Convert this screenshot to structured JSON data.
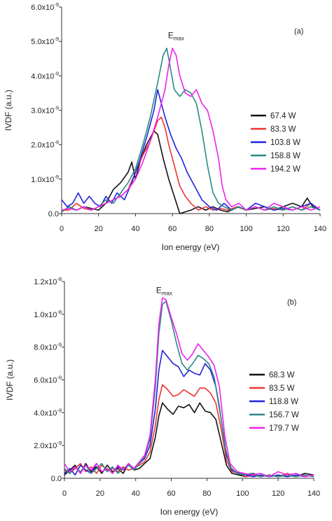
{
  "chart_data": [
    {
      "type": "line",
      "panel_label": "(a)",
      "xlabel": "Ion energy (eV)",
      "ylabel": "IVDF (a.u.)",
      "xlim": [
        0,
        140
      ],
      "ylim": [
        0,
        6e-09
      ],
      "x_ticks": [
        0,
        20,
        40,
        60,
        80,
        100,
        120,
        140
      ],
      "x_tick_labels": [
        "0",
        "20",
        "40",
        "60",
        "80",
        "100",
        "120",
        "140"
      ],
      "y_ticks": [
        0,
        1e-09,
        2e-09,
        3e-09,
        4e-09,
        5e-09,
        6e-09
      ],
      "y_tick_labels": [
        {
          "base": "0.0",
          "exp": ""
        },
        {
          "base": "1.0x10",
          "exp": "-9"
        },
        {
          "base": "2.0x10",
          "exp": "-9"
        },
        {
          "base": "3.0x10",
          "exp": "-9"
        },
        {
          "base": "4.0x10",
          "exp": "-9"
        },
        {
          "base": "5.0x10",
          "exp": "-9"
        },
        {
          "base": "6.0x10",
          "exp": "-9"
        }
      ],
      "annotation": {
        "text": "E",
        "sub": "max",
        "x": 62,
        "y": 5.1e-09
      },
      "grid": false,
      "legend_position": "right",
      "series": [
        {
          "name": "67.4 W",
          "color": "#111111",
          "x": [
            0,
            4,
            8,
            12,
            16,
            20,
            24,
            28,
            32,
            36,
            38,
            40,
            43,
            46,
            50,
            52,
            55,
            58,
            61,
            64,
            67,
            70,
            74,
            78,
            82,
            86,
            90,
            95,
            100,
            105,
            110,
            115,
            120,
            125,
            130,
            133,
            136,
            140
          ],
          "y": [
            5e-11,
            2e-10,
            1e-10,
            2e-10,
            1.5e-10,
            1e-10,
            3e-10,
            7e-10,
            9e-10,
            1.2e-09,
            1.5e-09,
            1e-09,
            1.6e-09,
            2e-09,
            2.4e-09,
            2.3e-09,
            1.6e-09,
            1e-09,
            5e-10,
            0.0,
            5e-11,
            1e-10,
            2e-10,
            1e-10,
            2e-10,
            1e-10,
            5e-11,
            2e-10,
            1e-10,
            1.5e-10,
            2e-10,
            1e-10,
            2e-10,
            3e-10,
            2e-10,
            4.5e-10,
            2e-10,
            1e-10
          ]
        },
        {
          "name": "83.3 W",
          "color": "#ee3333",
          "x": [
            0,
            4,
            8,
            12,
            16,
            20,
            24,
            28,
            32,
            36,
            40,
            44,
            48,
            52,
            54,
            56,
            58,
            61,
            64,
            67,
            70,
            74,
            78,
            82,
            86,
            90,
            95,
            100,
            105,
            110,
            115,
            120,
            125,
            130,
            135,
            140
          ],
          "y": [
            1e-10,
            1e-10,
            3e-10,
            1.5e-10,
            1e-10,
            2e-10,
            3e-10,
            4e-10,
            5e-10,
            7e-10,
            1.2e-09,
            1.7e-09,
            2.1e-09,
            2.7e-09,
            2.8e-09,
            2.5e-09,
            2e-09,
            1.4e-09,
            8e-10,
            5e-10,
            3e-10,
            1e-10,
            2e-10,
            1e-10,
            1.5e-10,
            1e-10,
            2e-10,
            1e-10,
            2e-10,
            1e-10,
            1.5e-10,
            1e-10,
            2e-10,
            1e-10,
            3e-10,
            1e-10
          ]
        },
        {
          "name": "103.8 W",
          "color": "#2222dd",
          "x": [
            0,
            3,
            6,
            9,
            12,
            15,
            18,
            21,
            24,
            27,
            30,
            34,
            38,
            42,
            46,
            50,
            52,
            54,
            56,
            59,
            62,
            65,
            68,
            72,
            76,
            80,
            84,
            88,
            92,
            96,
            100,
            105,
            110,
            115,
            120,
            125,
            130,
            135,
            140
          ],
          "y": [
            4e-10,
            2e-10,
            3e-10,
            6e-10,
            3e-10,
            5e-10,
            3e-10,
            2e-10,
            5e-10,
            3e-10,
            6e-10,
            4e-10,
            9e-10,
            1.5e-09,
            2.2e-09,
            3e-09,
            3.6e-09,
            3.2e-09,
            2.8e-09,
            2.3e-09,
            1.9e-09,
            1.6e-09,
            1.2e-09,
            8e-10,
            4e-10,
            2e-10,
            1e-10,
            3e-10,
            1e-10,
            2e-10,
            1e-10,
            3e-10,
            2e-10,
            1e-10,
            1.5e-10,
            1e-10,
            2e-10,
            3e-10,
            1e-10
          ]
        },
        {
          "name": "158.8 W",
          "color": "#2a8a82",
          "x": [
            0,
            4,
            8,
            12,
            16,
            20,
            24,
            28,
            32,
            36,
            40,
            44,
            48,
            52,
            55,
            57,
            59,
            61,
            64,
            67,
            70,
            73,
            76,
            79,
            82,
            85,
            88,
            92,
            96,
            100,
            105,
            110,
            115,
            120,
            125,
            130,
            135,
            140
          ],
          "y": [
            5e-11,
            2e-10,
            1e-10,
            2e-10,
            1e-10,
            2e-10,
            4e-10,
            3e-10,
            6e-10,
            9e-10,
            1.3e-09,
            2e-09,
            2.8e-09,
            3.8e-09,
            4.6e-09,
            4.8e-09,
            4.2e-09,
            3.6e-09,
            3.4e-09,
            3.6e-09,
            3.5e-09,
            3.2e-09,
            2.4e-09,
            1.4e-09,
            6e-10,
            3e-10,
            2e-10,
            1e-10,
            2e-10,
            1e-10,
            2e-10,
            1e-10,
            2e-10,
            1e-10,
            2e-10,
            1e-10,
            2e-10,
            1e-10
          ]
        },
        {
          "name": "194.2 W",
          "color": "#ee22ee",
          "x": [
            0,
            4,
            8,
            12,
            16,
            20,
            24,
            28,
            32,
            36,
            40,
            44,
            48,
            52,
            56,
            58,
            60,
            62,
            64,
            67,
            70,
            73,
            76,
            79,
            82,
            85,
            87,
            89,
            92,
            96,
            100,
            105,
            110,
            115,
            120,
            125,
            130,
            135,
            140
          ],
          "y": [
            1e-10,
            1.5e-10,
            1e-10,
            2e-10,
            1e-10,
            2e-10,
            3e-10,
            4e-10,
            5e-10,
            7e-10,
            1e-09,
            1.5e-09,
            2.1e-09,
            2.8e-09,
            3.6e-09,
            4.3e-09,
            4.8e-09,
            4.6e-09,
            4e-09,
            3.5e-09,
            3.4e-09,
            3.6e-09,
            3.2e-09,
            3e-09,
            2.4e-09,
            1.6e-09,
            8e-10,
            4e-10,
            2e-10,
            3e-10,
            1e-10,
            2e-10,
            1e-10,
            3e-10,
            2e-10,
            1e-10,
            2e-10,
            1e-10,
            2e-10
          ]
        }
      ]
    },
    {
      "type": "line",
      "panel_label": "(b)",
      "xlabel": "Ion energy (eV)",
      "ylabel": "IVDF (a.u.)",
      "xlim": [
        0,
        140
      ],
      "ylim": [
        0,
        1.2e-08
      ],
      "x_ticks": [
        0,
        20,
        40,
        60,
        80,
        100,
        120,
        140
      ],
      "x_tick_labels": [
        "0",
        "20",
        "40",
        "60",
        "80",
        "100",
        "120",
        "140"
      ],
      "y_ticks": [
        0,
        2e-09,
        4e-09,
        6e-09,
        8e-09,
        1e-08,
        1.2e-08
      ],
      "y_tick_labels": [
        {
          "base": "0.0",
          "exp": ""
        },
        {
          "base": "2.0x10",
          "exp": "-9"
        },
        {
          "base": "4.0x10",
          "exp": "-9"
        },
        {
          "base": "6.0x10",
          "exp": "-9"
        },
        {
          "base": "8.0x10",
          "exp": "-9"
        },
        {
          "base": "1.0x10",
          "exp": "-8"
        },
        {
          "base": "1.2x10",
          "exp": "-8"
        }
      ],
      "annotation": {
        "text": "E",
        "sub": "max",
        "x": 56,
        "y": 1.13e-08
      },
      "grid": false,
      "legend_position": "right",
      "series": [
        {
          "name": "68.3 W",
          "color": "#111111",
          "x": [
            0,
            3,
            6,
            9,
            12,
            15,
            18,
            21,
            24,
            27,
            30,
            33,
            36,
            39,
            42,
            45,
            48,
            51,
            53,
            55,
            58,
            61,
            64,
            67,
            70,
            73,
            76,
            79,
            82,
            85,
            88,
            91,
            94,
            98,
            102,
            106,
            110,
            115,
            120,
            125,
            130,
            135,
            140
          ],
          "y": [
            2e-10,
            5e-10,
            8e-10,
            3e-10,
            9e-10,
            4e-10,
            7e-10,
            3e-10,
            8e-10,
            4e-10,
            6e-10,
            3e-10,
            9e-10,
            5e-10,
            6e-10,
            9e-10,
            1.2e-09,
            2.5e-09,
            3.8e-09,
            4.6e-09,
            4.2e-09,
            3.9e-09,
            4.4e-09,
            4.3e-09,
            4.5e-09,
            4e-09,
            4.6e-09,
            4.1e-09,
            4e-09,
            3.6e-09,
            2.2e-09,
            8e-10,
            3e-10,
            2e-10,
            1e-10,
            3e-10,
            1e-10,
            2e-10,
            1e-10,
            2e-10,
            1e-10,
            3e-10,
            2e-10
          ]
        },
        {
          "name": "83.5 W",
          "color": "#ee3333",
          "x": [
            0,
            3,
            6,
            9,
            12,
            15,
            18,
            21,
            24,
            27,
            30,
            33,
            36,
            39,
            42,
            45,
            48,
            51,
            53,
            55,
            58,
            61,
            64,
            67,
            70,
            73,
            76,
            79,
            82,
            85,
            88,
            91,
            94,
            98,
            102,
            106,
            110,
            115,
            120,
            125,
            130,
            135,
            140
          ],
          "y": [
            5e-10,
            3e-10,
            6e-10,
            9e-10,
            4e-10,
            7e-10,
            3e-10,
            8e-10,
            5e-10,
            6e-10,
            4e-10,
            7e-10,
            5e-10,
            6e-10,
            8e-10,
            1e-09,
            1.6e-09,
            3.2e-09,
            4.8e-09,
            5.7e-09,
            5.4e-09,
            5e-09,
            5.1e-09,
            5.4e-09,
            5.2e-09,
            5e-09,
            5.5e-09,
            5.5e-09,
            5.2e-09,
            4.6e-09,
            3e-09,
            1.1e-09,
            4e-10,
            3e-10,
            1e-10,
            2e-10,
            1e-10,
            2e-10,
            1e-10,
            3e-10,
            1e-10,
            2e-10,
            1e-10
          ]
        },
        {
          "name": "118.8 W",
          "color": "#2222dd",
          "x": [
            0,
            3,
            6,
            9,
            12,
            15,
            18,
            21,
            24,
            27,
            30,
            33,
            36,
            39,
            42,
            45,
            48,
            51,
            53,
            55,
            58,
            61,
            64,
            67,
            70,
            73,
            76,
            79,
            82,
            85,
            88,
            91,
            94,
            98,
            102,
            106,
            110,
            115,
            120,
            125,
            130,
            135,
            140
          ],
          "y": [
            3e-10,
            6e-10,
            2e-10,
            8e-10,
            5e-10,
            3e-10,
            9e-10,
            4e-10,
            6e-10,
            3e-10,
            7e-10,
            5e-10,
            8e-10,
            6e-10,
            9e-10,
            1.2e-09,
            2e-09,
            4.2e-09,
            6.6e-09,
            7.8e-09,
            7.4e-09,
            7e-09,
            6.8e-09,
            6.2e-09,
            6.6e-09,
            6.4e-09,
            6.3e-09,
            7e-09,
            6.6e-09,
            5.6e-09,
            3.6e-09,
            1.4e-09,
            5e-10,
            3e-10,
            2e-10,
            1e-10,
            2e-10,
            1e-10,
            2e-10,
            1e-10,
            2e-10,
            1e-10,
            2e-10
          ]
        },
        {
          "name": "156.7 W",
          "color": "#2a8a82",
          "x": [
            0,
            3,
            6,
            9,
            12,
            15,
            18,
            21,
            24,
            27,
            30,
            33,
            36,
            39,
            42,
            45,
            48,
            51,
            53,
            55,
            57,
            60,
            63,
            66,
            69,
            72,
            75,
            78,
            81,
            84,
            87,
            90,
            93,
            97,
            101,
            105,
            110,
            115,
            120,
            125,
            130,
            135,
            140
          ],
          "y": [
            6e-10,
            3e-10,
            7e-10,
            4e-10,
            8e-10,
            3e-10,
            6e-10,
            9e-10,
            4e-10,
            7e-10,
            3e-10,
            6e-10,
            8e-10,
            5e-10,
            9e-10,
            1.3e-09,
            2.4e-09,
            5.5e-09,
            8.8e-09,
            1.06e-08,
            1.08e-08,
            9.6e-09,
            8.2e-09,
            7e-09,
            6.6e-09,
            7e-09,
            7.5e-09,
            7.3e-09,
            7e-09,
            6.2e-09,
            4.4e-09,
            2e-09,
            7e-10,
            3e-10,
            2e-10,
            3e-10,
            1e-10,
            2e-10,
            1e-10,
            2e-10,
            1e-10,
            2e-10,
            1e-10
          ]
        },
        {
          "name": "179.7 W",
          "color": "#ee22ee",
          "x": [
            0,
            3,
            6,
            9,
            12,
            15,
            18,
            21,
            24,
            27,
            30,
            33,
            36,
            39,
            42,
            45,
            48,
            51,
            53,
            55,
            57,
            60,
            63,
            66,
            69,
            72,
            75,
            78,
            81,
            84,
            87,
            90,
            93,
            97,
            101,
            105,
            110,
            115,
            120,
            125,
            130,
            135,
            140
          ],
          "y": [
            9e-10,
            4e-10,
            7e-10,
            3e-10,
            8e-10,
            5e-10,
            9e-10,
            4e-10,
            6e-10,
            3e-10,
            8e-10,
            5e-10,
            9e-10,
            6e-10,
            1e-09,
            1.4e-09,
            2.6e-09,
            6e-09,
            9.4e-09,
            1.1e-08,
            1.09e-08,
            9.8e-09,
            8.8e-09,
            7.6e-09,
            7.2e-09,
            7.6e-09,
            8.2e-09,
            7.8e-09,
            7.4e-09,
            6.9e-09,
            5.6e-09,
            2.6e-09,
            9e-10,
            4e-10,
            3e-10,
            2e-10,
            3e-10,
            1e-10,
            4e-10,
            2e-10,
            3e-10,
            1e-10,
            2e-10
          ]
        }
      ]
    }
  ]
}
